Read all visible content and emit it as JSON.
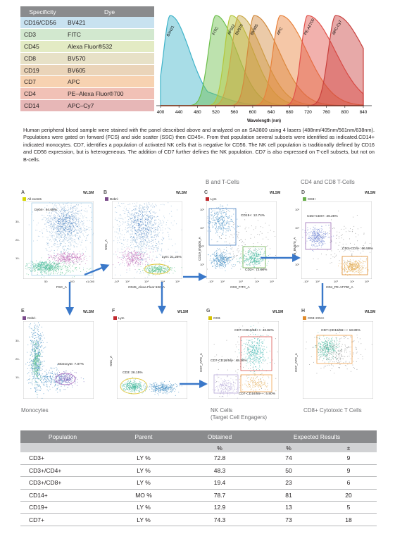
{
  "panel": {
    "headers": [
      "Specificity",
      "Dye"
    ],
    "rows": [
      {
        "spec": "CD16/CD56",
        "dye": "BV421",
        "color": "#c8e2f0"
      },
      {
        "spec": "CD3",
        "dye": "FITC",
        "color": "#d2e8cf"
      },
      {
        "spec": "CD45",
        "dye": "Alexa Fluor®532",
        "color": "#e3ebc4"
      },
      {
        "spec": "CD8",
        "dye": "BV570",
        "color": "#e7e1c7"
      },
      {
        "spec": "CD19",
        "dye": "BV605",
        "color": "#ead4b9"
      },
      {
        "spec": "CD7",
        "dye": "APC",
        "color": "#f7d2b1"
      },
      {
        "spec": "CD4",
        "dye": "PE–Alexa Fluor®700",
        "color": "#f1c1b6"
      },
      {
        "spec": "CD14",
        "dye": "APC–Cy7",
        "color": "#e7b7b7"
      }
    ]
  },
  "spectra": {
    "xlabel": "Wavelength (nm)",
    "ticks": [
      "400",
      "440",
      "480",
      "520",
      "560",
      "600",
      "640",
      "680",
      "720",
      "760",
      "800",
      "840"
    ],
    "dyes": [
      {
        "name": "BV421",
        "peak": 421,
        "color": "#3fb3c9"
      },
      {
        "name": "FITC",
        "peak": 520,
        "color": "#6cbf4b"
      },
      {
        "name": "AF532",
        "peak": 553,
        "color": "#b4c73c"
      },
      {
        "name": "BV570",
        "peak": 570,
        "color": "#c9a94a"
      },
      {
        "name": "BV605",
        "peak": 603,
        "color": "#d28a3e"
      },
      {
        "name": "APC",
        "peak": 660,
        "color": "#e8823c"
      },
      {
        "name": "PE-AF700",
        "peak": 719,
        "color": "#e2514a"
      },
      {
        "name": "APC-Cy7",
        "peak": 780,
        "color": "#c9403d"
      }
    ]
  },
  "description": "Human peripheral blood sample were stained with the panel described above and analyzed on an SA3800 using 4 lasers (488nm/405nm/561nm/638nm). Populations were gated on forward (FCS) and side scatter (SSC) then CD45+. From that population several subsets were identified as indicated.CD14+ indicated monocytes. CD7, identifies a population of activated NK cells that is negative for CD56. The NK cell population is traditionally defined by CD16 and CD56 expression, but is heterogeneous. The addition of CD7 further defines the NK population. CD7 is also expressed on T-cell subsets, but not on B-cells.",
  "sections": {
    "b_t_cells": "B and T-Cells",
    "cd4_cd8": "CD4 and CD8 T-Cells",
    "monocytes": "Monocytes",
    "nk_cells": "NK Cells",
    "nk_cells_sub": "(Target Cell Engagers)",
    "cd8_cyto": "CD8+ Cytotoxic T Cells"
  },
  "plots": {
    "wlsm": "WLSM",
    "A": {
      "letter": "A",
      "tag": "All events",
      "tag_color": "#d6d600",
      "gate": "Debri-: 94.68%",
      "xlabel": "FSC_A",
      "ylabel": "SSC_A",
      "xticks": [
        "50",
        "100",
        "x1,000"
      ],
      "yticks": [
        "30-",
        "20-",
        "10-",
        "x1,000"
      ]
    },
    "B": {
      "letter": "B",
      "tag": "Debri-",
      "tag_color": "#7a4a8a",
      "gate": "Lym: 21.26%",
      "xlabel": "CD45_Alexa Fluor 532_A",
      "ylabel": "SSC_A",
      "xticks": [
        "-10²",
        "10²",
        "10³",
        "10⁴",
        "10⁵"
      ],
      "yticks": [
        "30-",
        "20-",
        "10-",
        "x1,000"
      ]
    },
    "C": {
      "letter": "C",
      "tag": "Lym",
      "tag_color": "#c0282d",
      "gate1": "CD19+: 12.74%",
      "gate2": "CD3+: 72.58%",
      "xlabel": "CD3_FITC_A",
      "ylabel": "CD19_BV605_A",
      "xticks": [
        "-10²",
        "10²",
        "10³",
        "10⁴",
        "10⁵"
      ],
      "yticks": [
        "10⁵",
        "10⁴",
        "10³",
        "10²"
      ]
    },
    "D": {
      "letter": "D",
      "tag": "CD3+",
      "tag_color": "#6ab04c",
      "gate1": "CD3+CD8+: 26.26%",
      "gate2": "CD3+CD4+: 66.59%",
      "xlabel": "CD4_PE-AF700_A",
      "ylabel": "CD8_BV570_A",
      "xticks": [
        "-10²",
        "10²",
        "10³",
        "10⁴",
        "10⁵"
      ],
      "yticks": [
        "10⁵",
        "10⁴",
        "10³",
        "10²"
      ]
    },
    "E": {
      "letter": "E",
      "tag": "Debri-",
      "tag_color": "#7a4a8a",
      "gate": "Monocyte: 7.07%",
      "xlabel": "",
      "ylabel": "SSC_A",
      "yticks": [
        "30-",
        "20-",
        "10-",
        "x1,000"
      ]
    },
    "F": {
      "letter": "F",
      "tag": "Lym",
      "tag_color": "#c0282d",
      "gate": "CD3: 26.15%",
      "xlabel": "",
      "ylabel": "SSC_A",
      "yticks": [
        "30-",
        "20-",
        "10-",
        "x1,000"
      ]
    },
    "G": {
      "letter": "G",
      "tag": "CD3-",
      "tag_color": "#d6c200",
      "gate1": "CD7+CD16/56++: 43.82%",
      "gate2": "CD7-CD16/56+: 49.36%",
      "gate3": "CD7-CD16/56++: 5.80%",
      "xlabel": "",
      "ylabel": "CD7_APC_A",
      "yticks": [
        "10⁵",
        "10⁴",
        "10³",
        "10²"
      ]
    },
    "H": {
      "letter": "H",
      "tag": "CD3+CD4+",
      "tag_color": "#e08a2a",
      "gate": "CD7+CD16/56++: 18.89%",
      "xlabel": "",
      "ylabel": "CD7_APC_A",
      "yticks": [
        "10⁵",
        "10⁴",
        "10³",
        "10²"
      ]
    }
  },
  "results": {
    "headers": [
      "Population",
      "Parent",
      "Obtained",
      "Expected Results"
    ],
    "subheaders": [
      "",
      "",
      "%",
      "%",
      "±"
    ],
    "rows": [
      {
        "population": "CD3+",
        "parent": "LY %",
        "obtained": "72.8",
        "expected": "74",
        "pm": "9"
      },
      {
        "population": "CD3+/CD4+",
        "parent": "LY %",
        "obtained": "48.3",
        "expected": "50",
        "pm": "9"
      },
      {
        "population": "CD3+/CD8+",
        "parent": "LY %",
        "obtained": "19.4",
        "expected": "23",
        "pm": "6"
      },
      {
        "population": "CD14+",
        "parent": "MO %",
        "obtained": "78.7",
        "expected": "81",
        "pm": "20"
      },
      {
        "population": "CD19+",
        "parent": "LY %",
        "obtained": "12.9",
        "expected": "13",
        "pm": "5"
      },
      {
        "population": "CD7+",
        "parent": "LY %",
        "obtained": "74.3",
        "expected": "73",
        "pm": "18"
      }
    ]
  }
}
